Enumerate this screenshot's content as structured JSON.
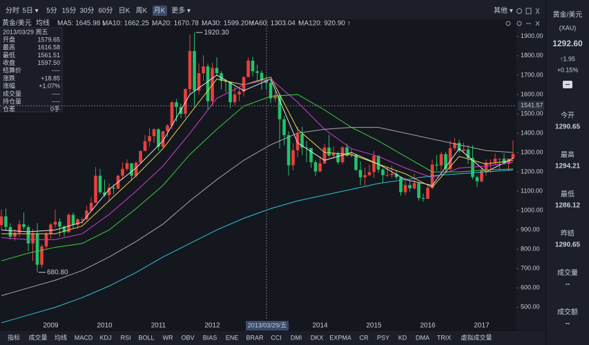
{
  "toolbar": {
    "periods": [
      "分时",
      "5日 ▾",
      "5分",
      "15分",
      "30分",
      "60分",
      "日K",
      "周K",
      "月K",
      "更多 ▾"
    ],
    "other": "其他 ▾"
  },
  "legend_row": {
    "symbol": "黄金/美元",
    "mode": "均线"
  },
  "info_panel": {
    "date": "2013/03/29 周五",
    "rows": [
      [
        "开盘",
        "1579.65"
      ],
      [
        "最高",
        "1616.58"
      ],
      [
        "最低",
        "1561.51"
      ],
      [
        "收盘",
        "1597.50"
      ],
      [
        "结算价",
        "----"
      ],
      [
        "涨跌",
        "+18.85"
      ],
      [
        "涨幅",
        "+1.07%"
      ],
      [
        "成交量",
        "----"
      ],
      [
        "持仓量",
        "----"
      ],
      [
        "仓差",
        "0手"
      ]
    ]
  },
  "quote_panel": {
    "symbol": "黄金/美元",
    "code": "(XAU)",
    "price": "1292.60",
    "change": "↑1.95",
    "change_pct": "+0.15%",
    "fields": [
      [
        "今开",
        "1290.65"
      ],
      [
        "最高",
        "1294.21"
      ],
      [
        "最低",
        "1286.12"
      ],
      [
        "昨结",
        "1290.65"
      ],
      [
        "成交量",
        "--"
      ],
      [
        "成交额",
        "--"
      ]
    ]
  },
  "bottom_tabs": [
    "指标",
    "成交量",
    "均线",
    "MACD",
    "KDJ",
    "RSI",
    "BOLL",
    "WR",
    "OBV",
    "BIAS",
    "ENE",
    "BRAR",
    "CCI",
    "DMI",
    "DKX",
    "EXPMA",
    "CR",
    "PSY",
    "KD",
    "DMA",
    "TRIX",
    "虚拟成交量"
  ],
  "chart_data": {
    "type": "candlestick",
    "up_color": "#e8413d",
    "down_color": "#22c36a",
    "ylim": [
      405,
      1960
    ],
    "yticks": [
      {
        "value": 500,
        "label": "500.00"
      },
      {
        "value": 600,
        "label": "600.00"
      },
      {
        "value": 700,
        "label": "700.00"
      },
      {
        "value": 800,
        "label": "800.00"
      },
      {
        "value": 900,
        "label": "900.00"
      },
      {
        "value": 1000,
        "label": "1000.00"
      },
      {
        "value": 1100,
        "label": "1100.00"
      },
      {
        "value": 1200,
        "label": "1200.00"
      },
      {
        "value": 1300,
        "label": "1300.00"
      },
      {
        "value": 1400,
        "label": "1400.00"
      },
      {
        "value": 1500,
        "label": "1500.00"
      },
      {
        "value": 1600,
        "label": "1600.00"
      },
      {
        "value": 1700,
        "label": "1700.00"
      },
      {
        "value": 1800,
        "label": "1800.00"
      },
      {
        "value": 1900,
        "label": "1900.00"
      }
    ],
    "grid": false,
    "categories": [
      null,
      null,
      null,
      null,
      null,
      null,
      null,
      null,
      null,
      null,
      null,
      "2009",
      null,
      null,
      null,
      null,
      null,
      null,
      null,
      null,
      null,
      null,
      null,
      "2010",
      null,
      null,
      null,
      null,
      null,
      null,
      null,
      null,
      null,
      null,
      null,
      "2011",
      null,
      null,
      null,
      null,
      null,
      null,
      null,
      null,
      null,
      null,
      null,
      "2012",
      null,
      null,
      null,
      null,
      null,
      null,
      null,
      null,
      null,
      null,
      null,
      null,
      null,
      null,
      null,
      null,
      null,
      null,
      null,
      null,
      null,
      null,
      null,
      "2014",
      null,
      null,
      null,
      null,
      null,
      null,
      null,
      null,
      null,
      null,
      null,
      "2015",
      null,
      null,
      null,
      null,
      null,
      null,
      null,
      null,
      null,
      null,
      null,
      "2016",
      null,
      null,
      null,
      null,
      null,
      null,
      null,
      null,
      null,
      null,
      null,
      "2017",
      null,
      null,
      null,
      null,
      null,
      null,
      null
    ],
    "candles": [
      [
        925,
        1005,
        900,
        970
      ],
      [
        970,
        1010,
        895,
        915
      ],
      [
        915,
        935,
        850,
        865
      ],
      [
        865,
        905,
        845,
        885
      ],
      [
        885,
        950,
        865,
        930
      ],
      [
        930,
        990,
        900,
        915
      ],
      [
        915,
        925,
        790,
        830
      ],
      [
        830,
        905,
        740,
        880
      ],
      [
        880,
        935,
        680.8,
        720
      ],
      [
        720,
        825,
        705,
        815
      ],
      [
        815,
        890,
        800,
        880
      ],
      [
        880,
        935,
        855,
        928
      ],
      [
        928,
        1005,
        910,
        942
      ],
      [
        942,
        960,
        865,
        917
      ],
      [
        917,
        925,
        865,
        888
      ],
      [
        888,
        985,
        885,
        978
      ],
      [
        978,
        990,
        905,
        927
      ],
      [
        927,
        960,
        905,
        955
      ],
      [
        955,
        965,
        930,
        955
      ],
      [
        955,
        1025,
        950,
        1000
      ],
      [
        1000,
        1070,
        1000,
        1040
      ],
      [
        1040,
        1225,
        1040,
        1180
      ],
      [
        1180,
        1215,
        1085,
        1095
      ],
      [
        1095,
        1160,
        1070,
        1080
      ],
      [
        1080,
        1140,
        1045,
        1118
      ],
      [
        1118,
        1135,
        1085,
        1113
      ],
      [
        1113,
        1185,
        1115,
        1180
      ],
      [
        1180,
        1250,
        1160,
        1215
      ],
      [
        1215,
        1265,
        1205,
        1245
      ],
      [
        1245,
        1245,
        1155,
        1180
      ],
      [
        1180,
        1255,
        1170,
        1248
      ],
      [
        1248,
        1310,
        1245,
        1308
      ],
      [
        1308,
        1390,
        1310,
        1358
      ],
      [
        1358,
        1425,
        1330,
        1385
      ],
      [
        1385,
        1425,
        1350,
        1420
      ],
      [
        1420,
        1425,
        1310,
        1330
      ],
      [
        1330,
        1412,
        1325,
        1410
      ],
      [
        1410,
        1447,
        1380,
        1440
      ],
      [
        1440,
        1565,
        1420,
        1560
      ],
      [
        1560,
        1577,
        1460,
        1535
      ],
      [
        1535,
        1553,
        1478,
        1500
      ],
      [
        1500,
        1632,
        1480,
        1628
      ],
      [
        1628,
        1911,
        1600,
        1825
      ],
      [
        1825,
        1920.3,
        1535,
        1620
      ],
      [
        1620,
        1760,
        1600,
        1710
      ],
      [
        1710,
        1803,
        1670,
        1745
      ],
      [
        1745,
        1760,
        1520,
        1565
      ],
      [
        1565,
        1764,
        1540,
        1737
      ],
      [
        1737,
        1792,
        1695,
        1710
      ],
      [
        1710,
        1720,
        1627,
        1670
      ],
      [
        1670,
        1680,
        1610,
        1665
      ],
      [
        1665,
        1665,
        1530,
        1560
      ],
      [
        1560,
        1640,
        1545,
        1600
      ],
      [
        1600,
        1630,
        1565,
        1615
      ],
      [
        1615,
        1695,
        1590,
        1690
      ],
      [
        1690,
        1790,
        1690,
        1775
      ],
      [
        1775,
        1795,
        1695,
        1720
      ],
      [
        1720,
        1755,
        1670,
        1712
      ],
      [
        1712,
        1725,
        1625,
        1675
      ],
      [
        1675,
        1695,
        1625,
        1660
      ],
      [
        1660,
        1680,
        1555,
        1580
      ],
      [
        1579.65,
        1616.58,
        1561.51,
        1597.5
      ],
      [
        1597.5,
        1605,
        1321,
        1472
      ],
      [
        1472,
        1488,
        1338,
        1390
      ],
      [
        1390,
        1410,
        1180,
        1234
      ],
      [
        1234,
        1348,
        1208,
        1312
      ],
      [
        1312,
        1433,
        1275,
        1396
      ],
      [
        1396,
        1434,
        1287,
        1326
      ],
      [
        1326,
        1361,
        1251,
        1323
      ],
      [
        1323,
        1324,
        1221,
        1250
      ],
      [
        1250,
        1260,
        1180,
        1202
      ],
      [
        1202,
        1280,
        1200,
        1244
      ],
      [
        1244,
        1345,
        1240,
        1326
      ],
      [
        1326,
        1392,
        1277,
        1284
      ],
      [
        1284,
        1331,
        1268,
        1296
      ],
      [
        1296,
        1305,
        1240,
        1250
      ],
      [
        1250,
        1332,
        1240,
        1327
      ],
      [
        1327,
        1345,
        1280,
        1282
      ],
      [
        1282,
        1322,
        1273,
        1287
      ],
      [
        1287,
        1290,
        1205,
        1210
      ],
      [
        1210,
        1255,
        1131,
        1172
      ],
      [
        1172,
        1222,
        1131,
        1183
      ],
      [
        1183,
        1238,
        1180,
        1199
      ],
      [
        1199,
        1307,
        1170,
        1283
      ],
      [
        1283,
        1285,
        1195,
        1212
      ],
      [
        1212,
        1220,
        1142,
        1183
      ],
      [
        1183,
        1224,
        1175,
        1184
      ],
      [
        1184,
        1232,
        1170,
        1190
      ],
      [
        1190,
        1205,
        1162,
        1172
      ],
      [
        1172,
        1175,
        1077,
        1095
      ],
      [
        1095,
        1170,
        1080,
        1132
      ],
      [
        1132,
        1157,
        1098,
        1115
      ],
      [
        1115,
        1191,
        1110,
        1142
      ],
      [
        1142,
        1145,
        1052,
        1065
      ],
      [
        1065,
        1088,
        1046,
        1061
      ],
      [
        1061,
        1128,
        1061,
        1118
      ],
      [
        1118,
        1263,
        1110,
        1238
      ],
      [
        1238,
        1287,
        1208,
        1233
      ],
      [
        1233,
        1304,
        1207,
        1292
      ],
      [
        1292,
        1303,
        1200,
        1214
      ],
      [
        1214,
        1362,
        1208,
        1322
      ],
      [
        1322,
        1375,
        1311,
        1350
      ],
      [
        1350,
        1366,
        1300,
        1309
      ],
      [
        1309,
        1352,
        1302,
        1316
      ],
      [
        1316,
        1337,
        1241,
        1272
      ],
      [
        1272,
        1337,
        1161,
        1173
      ],
      [
        1173,
        1182,
        1122,
        1151
      ],
      [
        1151,
        1220,
        1146,
        1210
      ],
      [
        1210,
        1264,
        1180,
        1248
      ],
      [
        1248,
        1264,
        1195,
        1249
      ],
      [
        1249,
        1295,
        1240,
        1268
      ],
      [
        1268,
        1270,
        1214,
        1268
      ],
      [
        1268,
        1296,
        1236,
        1242
      ],
      [
        1242,
        1270,
        1205,
        1269
      ],
      [
        1269,
        1362,
        1265,
        1292.6
      ]
    ],
    "series": [
      {
        "name": "MA5: 1645.98 ↓",
        "color": "#e6e6e6",
        "x": [
          0,
          6,
          12,
          18,
          24,
          30,
          36,
          42,
          48,
          54,
          60,
          66,
          72,
          78,
          84,
          90,
          96,
          102,
          108,
          114
        ],
        "values": [
          900,
          890,
          900,
          940,
          1110,
          1220,
          1360,
          1600,
          1700,
          1620,
          1680,
          1350,
          1260,
          1300,
          1240,
          1160,
          1130,
          1320,
          1200,
          1270
        ]
      },
      {
        "name": "MA10: 1662.25 ↓",
        "color": "#e8d84a",
        "x": [
          0,
          6,
          12,
          18,
          24,
          30,
          36,
          42,
          48,
          54,
          60,
          66,
          72,
          78,
          84,
          90,
          96,
          102,
          108,
          114
        ],
        "values": [
          880,
          880,
          880,
          920,
          1050,
          1180,
          1320,
          1500,
          1680,
          1650,
          1690,
          1420,
          1300,
          1290,
          1240,
          1190,
          1120,
          1280,
          1240,
          1260
        ]
      },
      {
        "name": "MA20: 1670.78 ↓",
        "color": "#d33fd6",
        "x": [
          0,
          6,
          12,
          18,
          24,
          30,
          36,
          42,
          48,
          54,
          60,
          66,
          72,
          78,
          84,
          90,
          96,
          102,
          108,
          114
        ],
        "values": [
          860,
          850,
          850,
          880,
          980,
          1100,
          1230,
          1400,
          1580,
          1650,
          1680,
          1560,
          1420,
          1320,
          1280,
          1220,
          1170,
          1220,
          1230,
          1250
        ]
      },
      {
        "name": "MA30: 1599.20 ↑",
        "color": "#3fcf3f",
        "x": [
          0,
          6,
          12,
          18,
          24,
          30,
          36,
          42,
          48,
          54,
          60,
          66,
          72,
          78,
          84,
          90,
          96,
          102,
          108,
          114
        ],
        "values": [
          740,
          780,
          810,
          830,
          900,
          1010,
          1130,
          1290,
          1420,
          1540,
          1590,
          1600,
          1520,
          1430,
          1360,
          1280,
          1200,
          1200,
          1210,
          1215
        ]
      },
      {
        "name": "MA60: 1303.04 ↑",
        "color": "#a9a9a9",
        "x": [
          0,
          6,
          12,
          18,
          24,
          30,
          36,
          42,
          48,
          54,
          60,
          66,
          72,
          78,
          84,
          90,
          96,
          102,
          108,
          114
        ],
        "values": [
          560,
          600,
          640,
          690,
          760,
          840,
          930,
          1050,
          1160,
          1260,
          1340,
          1400,
          1420,
          1430,
          1430,
          1400,
          1370,
          1340,
          1310,
          1300
        ]
      },
      {
        "name": "MA120: 920.90 ↑",
        "color": "#2fc7d6",
        "x": [
          0,
          6,
          12,
          18,
          24,
          30,
          36,
          42,
          48,
          54,
          60,
          66,
          72,
          78,
          84,
          90,
          96,
          102,
          108,
          114
        ],
        "values": [
          420,
          460,
          500,
          550,
          610,
          680,
          760,
          830,
          900,
          960,
          1010,
          1050,
          1080,
          1110,
          1140,
          1160,
          1180,
          1190,
          1200,
          1210
        ]
      }
    ],
    "high_label": "1920.30",
    "low_label": "680.80",
    "crosshair_y": 1541.57,
    "crosshair_x_label": "2013/03/29/五"
  }
}
